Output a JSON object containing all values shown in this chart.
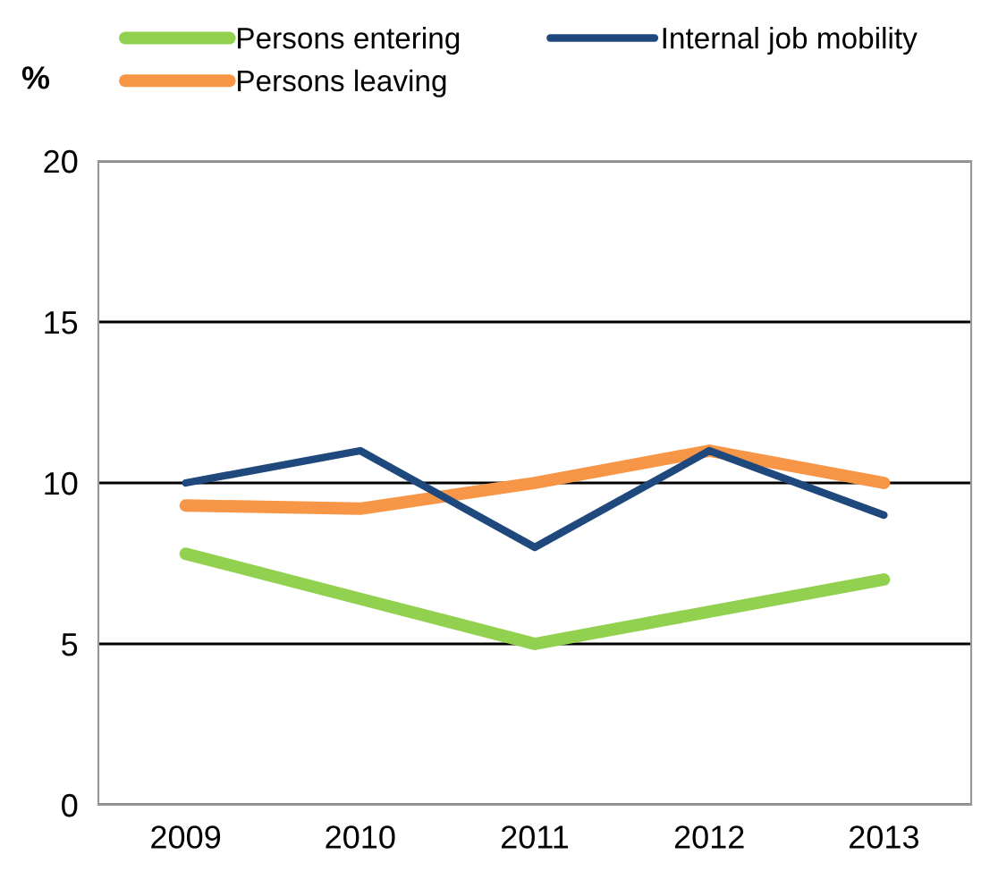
{
  "chart_data": {
    "type": "line",
    "ylabel": "%",
    "categories": [
      "2009",
      "2010",
      "2011",
      "2012",
      "2013"
    ],
    "series": [
      {
        "name": "Persons entering",
        "color": "#92d050",
        "values": [
          7.8,
          6.4,
          5,
          6,
          7
        ]
      },
      {
        "name": "Persons leaving",
        "color": "#f79646",
        "values": [
          9.3,
          9.2,
          10,
          11,
          10
        ]
      },
      {
        "name": "Internal job mobility",
        "color": "#1f497d",
        "values": [
          10,
          11,
          8,
          11,
          9
        ]
      }
    ],
    "ylim": [
      0,
      20
    ],
    "yticks": [
      0,
      5,
      10,
      15,
      20
    ],
    "grid": "y",
    "legend": "top",
    "marker": "none",
    "line_style": "solid"
  }
}
